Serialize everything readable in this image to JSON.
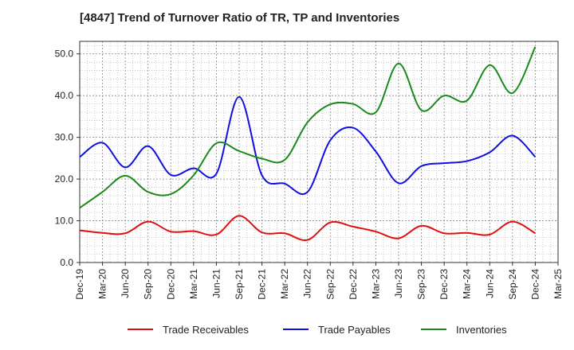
{
  "chart_data": {
    "type": "line",
    "title": "[4847]  Trend of Turnover Ratio of TR, TP and Inventories",
    "xlabel": "",
    "ylabel": "",
    "ylim": [
      0,
      53
    ],
    "yticks": [
      "0.0",
      "10.0",
      "20.0",
      "30.0",
      "40.0",
      "50.0"
    ],
    "xticks": [
      "Dec-19",
      "Mar-20",
      "Jun-20",
      "Sep-20",
      "Dec-20",
      "Mar-21",
      "Jun-21",
      "Sep-21",
      "Dec-21",
      "Mar-22",
      "Jun-22",
      "Sep-22",
      "Dec-22",
      "Mar-23",
      "Jun-23",
      "Sep-23",
      "Dec-23",
      "Mar-24",
      "Jun-24",
      "Sep-24",
      "Dec-24",
      "Mar-25"
    ],
    "grid": true,
    "legend_position": "bottom",
    "x": [
      "Dec-19",
      "Mar-20",
      "Jun-20",
      "Sep-20",
      "Dec-20",
      "Mar-21",
      "Jun-21",
      "Sep-21",
      "Dec-21",
      "Mar-22",
      "Jun-22",
      "Sep-22",
      "Dec-22",
      "Mar-23",
      "Jun-23",
      "Sep-23",
      "Dec-23",
      "Mar-24",
      "Jun-24",
      "Sep-24",
      "Dec-24"
    ],
    "series": [
      {
        "name": "Trade Receivables",
        "color": "#e01010",
        "values": [
          7.7,
          7.1,
          7.0,
          9.8,
          7.4,
          7.5,
          6.7,
          11.2,
          7.2,
          7.0,
          5.4,
          9.6,
          8.6,
          7.4,
          5.8,
          8.8,
          7.0,
          7.1,
          6.7,
          9.8,
          7.0
        ]
      },
      {
        "name": "Trade Payables",
        "color": "#1010e0",
        "values": [
          25.3,
          28.7,
          22.8,
          27.9,
          21.0,
          22.6,
          21.3,
          39.7,
          20.9,
          18.9,
          16.9,
          29.3,
          32.3,
          26.6,
          19.0,
          23.1,
          23.8,
          24.3,
          26.4,
          30.4,
          25.3
        ]
      },
      {
        "name": "Inventories",
        "color": "#1a8a1a",
        "values": [
          13.1,
          16.9,
          20.8,
          16.9,
          16.4,
          20.9,
          28.6,
          26.7,
          24.9,
          24.6,
          33.6,
          37.9,
          38.0,
          36.0,
          47.7,
          36.5,
          40.0,
          38.8,
          47.3,
          40.6,
          51.7
        ]
      }
    ]
  }
}
